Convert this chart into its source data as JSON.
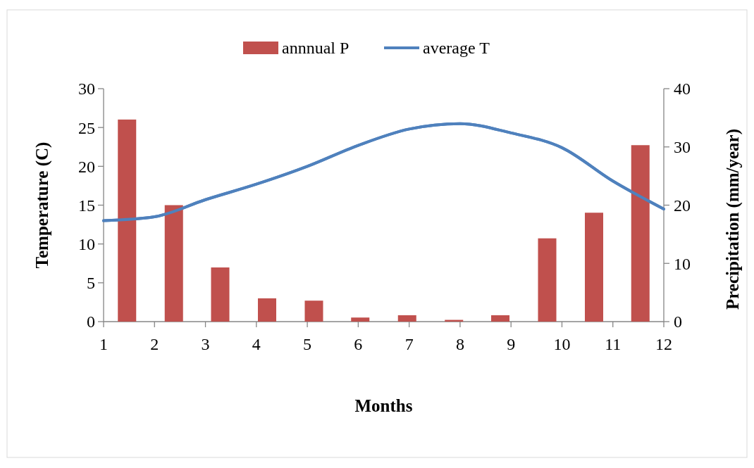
{
  "chart_data": {
    "type": "line",
    "xlabel": "Months",
    "ylabel": "Temperature (C)",
    "y2label": "Precipitation (mm/year)",
    "xlim": [
      1,
      12
    ],
    "xticks": [
      1,
      2,
      3,
      4,
      5,
      6,
      7,
      8,
      9,
      10,
      11,
      12
    ],
    "ylim": [
      0,
      30
    ],
    "yticks": [
      0,
      5,
      10,
      15,
      20,
      25,
      30
    ],
    "y2lim": [
      0,
      40
    ],
    "y2ticks": [
      0,
      10,
      20,
      30,
      40
    ],
    "legend": "top",
    "grid": false,
    "series": [
      {
        "name": "annnual P",
        "type": "bar",
        "axis": "y2",
        "color": "#c0504d",
        "x": [
          1.46,
          2.38,
          3.29,
          4.21,
          5.13,
          6.04,
          6.96,
          7.88,
          8.79,
          9.71,
          10.63,
          11.54
        ],
        "values": [
          34.7,
          20.0,
          9.3,
          4.0,
          3.6,
          0.7,
          1.1,
          0.3,
          1.1,
          14.3,
          18.7,
          30.3
        ]
      },
      {
        "name": "average T",
        "axis": "y",
        "color": "#4f81bd",
        "x": [
          1,
          2,
          3,
          4,
          5,
          6,
          7,
          8,
          9,
          10,
          11,
          12
        ],
        "values": [
          13.0,
          13.5,
          15.7,
          17.7,
          20.0,
          22.7,
          24.8,
          25.5,
          24.3,
          22.4,
          18.1,
          14.5
        ]
      }
    ]
  }
}
